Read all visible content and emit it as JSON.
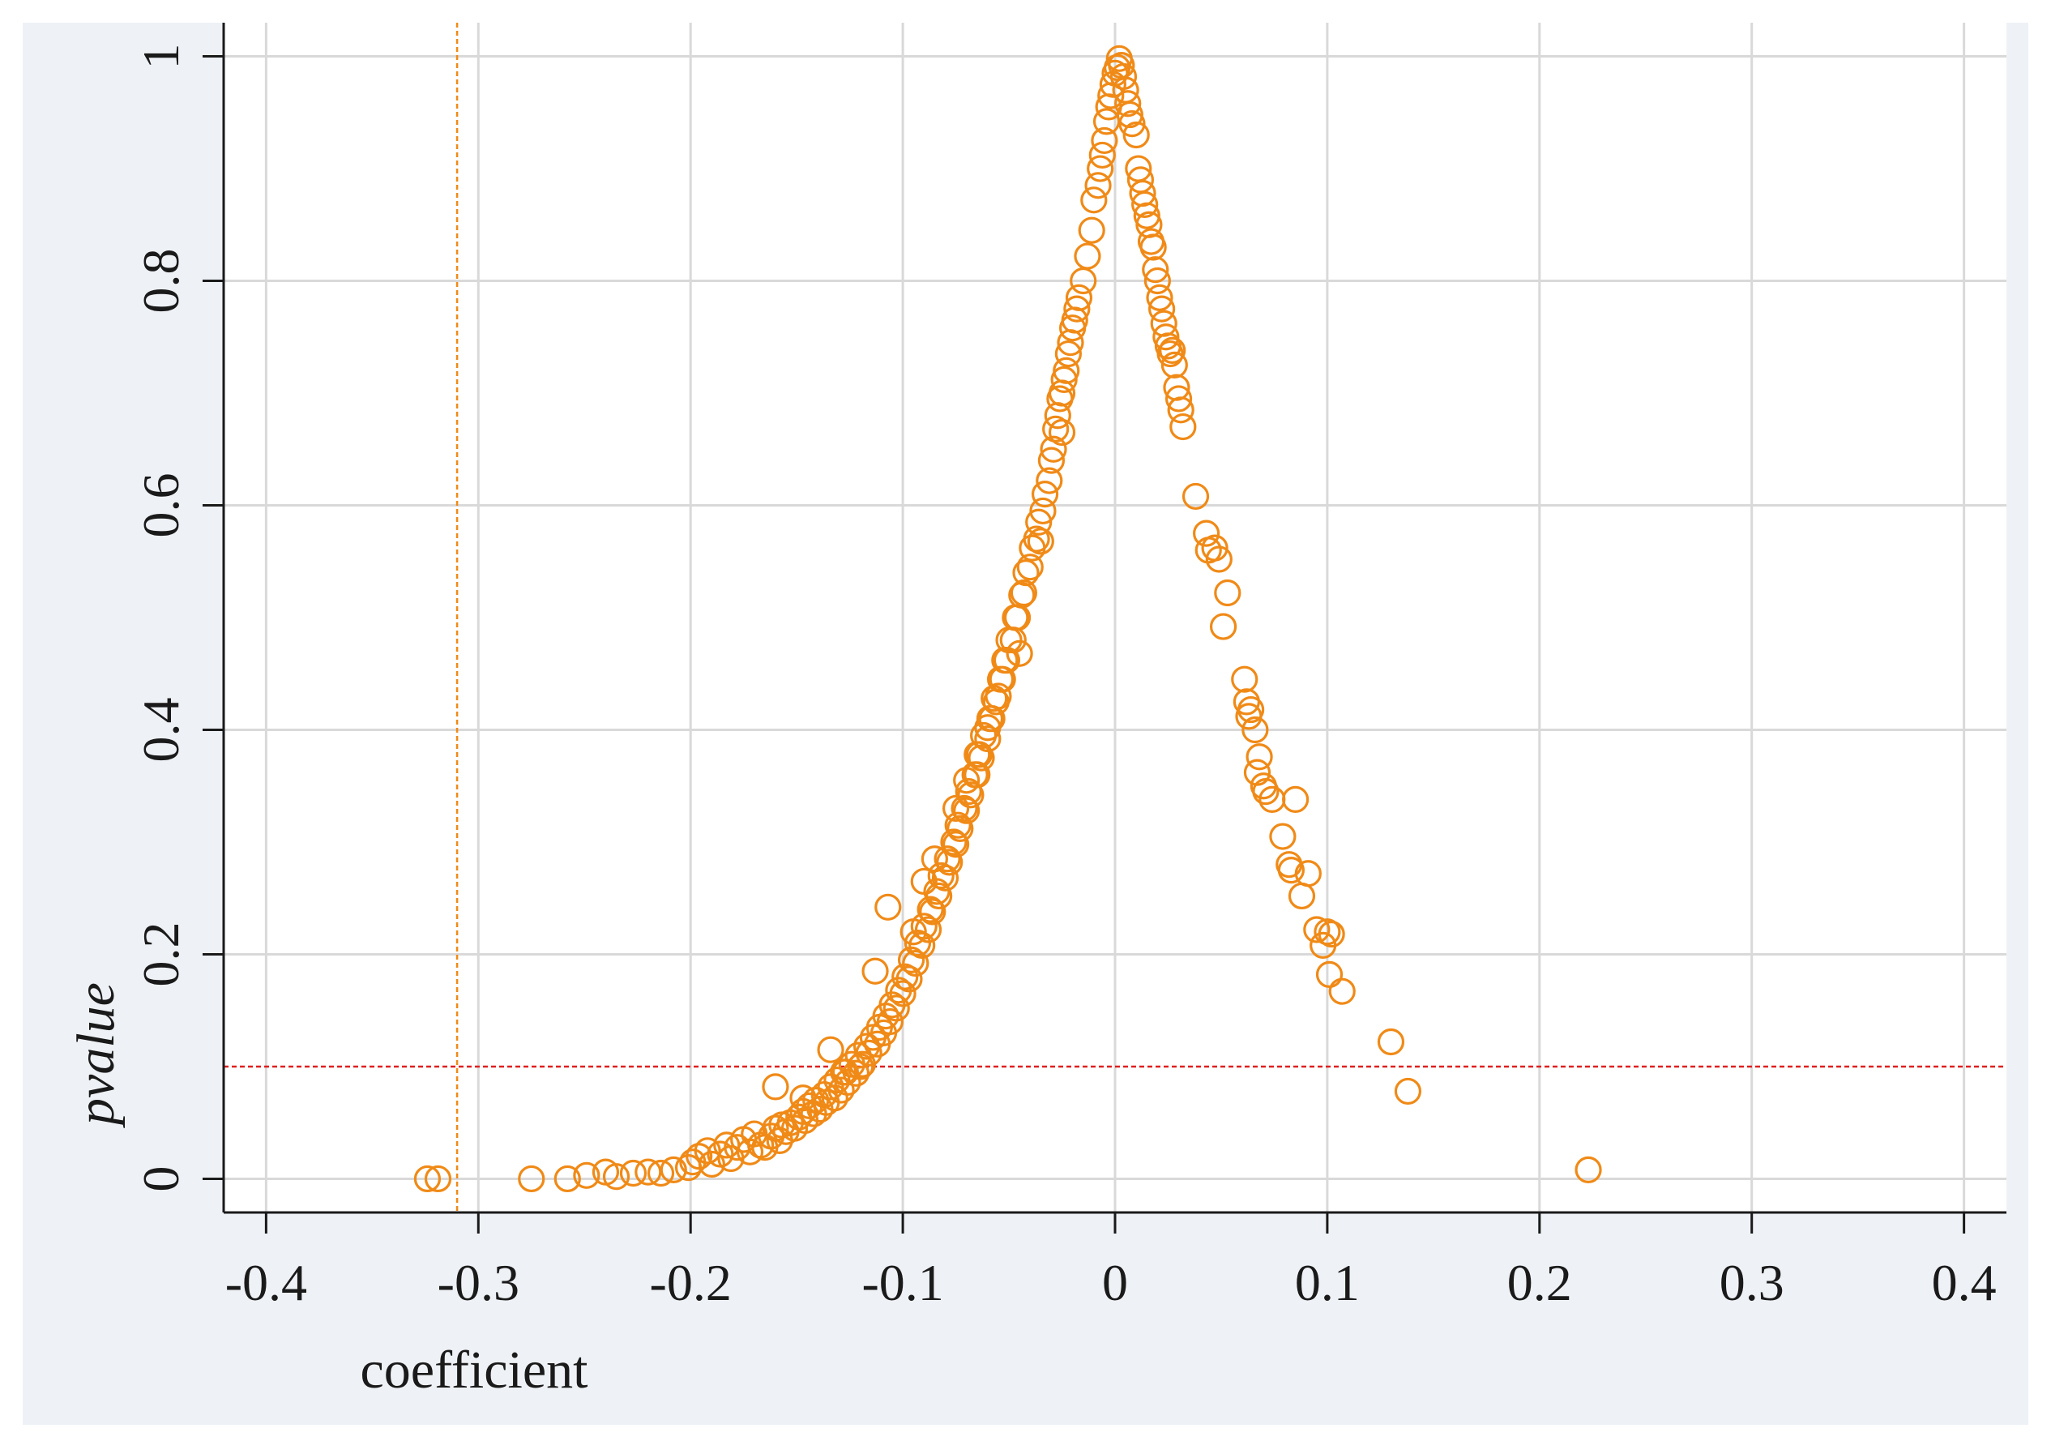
{
  "chart_data": {
    "type": "scatter",
    "title": "",
    "xlabel": "coefficient",
    "ylabel": "pvalue",
    "xlim": [
      -0.42,
      0.42
    ],
    "ylim": [
      -0.03,
      1.03
    ],
    "x_ticks": [
      -0.4,
      -0.3,
      -0.2,
      -0.1,
      0,
      0.1,
      0.2,
      0.3,
      0.4
    ],
    "x_tick_labels": [
      "-0.4",
      "-0.3",
      "-0.2",
      "-0.1",
      "0",
      "0.1",
      "0.2",
      "0.3",
      "0.4"
    ],
    "y_ticks": [
      0,
      0.2,
      0.4,
      0.6,
      0.8,
      1
    ],
    "y_tick_labels": [
      "0",
      "0.2",
      "0.4",
      "0.6",
      "0.8",
      "1"
    ],
    "grid": true,
    "reference_lines": [
      {
        "orientation": "vertical",
        "value": -0.31,
        "color": "#f08a17",
        "style": "dashed"
      },
      {
        "orientation": "horizontal",
        "value": 0.1,
        "color": "#e02020",
        "style": "dashed"
      }
    ],
    "series": [
      {
        "marker": "hollow-circle",
        "color": "#f08a17",
        "x": [
          -0.324,
          -0.319,
          -0.275,
          -0.258,
          -0.249,
          -0.24,
          -0.235,
          -0.227,
          -0.22,
          -0.214,
          -0.208,
          -0.201,
          -0.199,
          -0.196,
          -0.192,
          -0.19,
          -0.186,
          -0.183,
          -0.181,
          -0.178,
          -0.175,
          -0.172,
          -0.17,
          -0.167,
          -0.165,
          -0.162,
          -0.16,
          -0.158,
          -0.157,
          -0.155,
          -0.153,
          -0.151,
          -0.149,
          -0.147,
          -0.146,
          -0.144,
          -0.142,
          -0.141,
          -0.139,
          -0.137,
          -0.136,
          -0.134,
          -0.132,
          -0.131,
          -0.129,
          -0.127,
          -0.126,
          -0.124,
          -0.122,
          -0.121,
          -0.119,
          -0.117,
          -0.116,
          -0.114,
          -0.112,
          -0.111,
          -0.109,
          -0.108,
          -0.106,
          -0.105,
          -0.103,
          -0.102,
          -0.1,
          -0.099,
          -0.097,
          -0.096,
          -0.094,
          -0.093,
          -0.091,
          -0.09,
          -0.088,
          -0.087,
          -0.086,
          -0.084,
          -0.083,
          -0.082,
          -0.08,
          -0.079,
          -0.078,
          -0.076,
          -0.075,
          -0.074,
          -0.073,
          -0.071,
          -0.07,
          -0.069,
          -0.068,
          -0.066,
          -0.065,
          -0.064,
          -0.063,
          -0.062,
          -0.06,
          -0.059,
          -0.058,
          -0.057,
          -0.056,
          -0.054,
          -0.053,
          -0.052,
          -0.051,
          -0.05,
          -0.048,
          -0.047,
          -0.046,
          -0.044,
          -0.043,
          -0.042,
          -0.04,
          -0.039,
          -0.037,
          -0.036,
          -0.034,
          -0.033,
          -0.031,
          -0.03,
          -0.029,
          -0.028,
          -0.027,
          -0.026,
          -0.025,
          -0.024,
          -0.023,
          -0.022,
          -0.021,
          -0.02,
          -0.019,
          -0.018,
          -0.017,
          -0.015,
          -0.013,
          -0.011,
          -0.01,
          -0.008,
          -0.007,
          -0.006,
          -0.005,
          -0.004,
          -0.003,
          -0.002,
          -0.001,
          0.0,
          0.001,
          0.002,
          0.003,
          0.004,
          0.005,
          0.006,
          0.007,
          0.008,
          0.01,
          0.011,
          0.012,
          0.013,
          0.014,
          0.015,
          0.016,
          0.017,
          0.018,
          0.019,
          0.02,
          0.021,
          0.022,
          0.023,
          0.024,
          0.025,
          0.026,
          0.027,
          0.028,
          0.029,
          0.03,
          0.031,
          0.032,
          0.038,
          0.043,
          0.044,
          0.047,
          0.049,
          0.051,
          0.053,
          0.061,
          0.062,
          0.063,
          0.064,
          0.066,
          0.067,
          0.068,
          0.07,
          0.071,
          0.074,
          0.079,
          0.082,
          0.083,
          0.085,
          0.088,
          0.091,
          0.095,
          0.098,
          0.1,
          0.101,
          0.102,
          0.107,
          0.13,
          0.138,
          0.223,
          -0.107,
          -0.128,
          -0.134,
          -0.147,
          -0.16,
          -0.113,
          -0.12,
          -0.095,
          -0.09,
          -0.085,
          -0.075,
          -0.07,
          -0.065,
          -0.06,
          -0.055,
          -0.045,
          -0.035,
          -0.025
        ],
        "y": [
          0.0,
          0.0,
          0.0,
          0.0,
          0.003,
          0.006,
          0.002,
          0.005,
          0.006,
          0.005,
          0.008,
          0.01,
          0.015,
          0.02,
          0.025,
          0.013,
          0.022,
          0.03,
          0.018,
          0.028,
          0.035,
          0.024,
          0.04,
          0.03,
          0.028,
          0.038,
          0.045,
          0.034,
          0.048,
          0.042,
          0.05,
          0.045,
          0.055,
          0.06,
          0.052,
          0.065,
          0.058,
          0.07,
          0.062,
          0.075,
          0.068,
          0.082,
          0.072,
          0.088,
          0.079,
          0.095,
          0.086,
          0.102,
          0.094,
          0.11,
          0.102,
          0.118,
          0.112,
          0.126,
          0.12,
          0.135,
          0.13,
          0.145,
          0.14,
          0.155,
          0.152,
          0.168,
          0.165,
          0.18,
          0.178,
          0.195,
          0.192,
          0.21,
          0.208,
          0.225,
          0.222,
          0.24,
          0.238,
          0.256,
          0.252,
          0.27,
          0.268,
          0.285,
          0.282,
          0.3,
          0.298,
          0.315,
          0.312,
          0.33,
          0.328,
          0.345,
          0.342,
          0.36,
          0.36,
          0.378,
          0.375,
          0.395,
          0.392,
          0.41,
          0.41,
          0.428,
          0.425,
          0.445,
          0.445,
          0.462,
          0.462,
          0.48,
          0.48,
          0.5,
          0.5,
          0.52,
          0.522,
          0.54,
          0.545,
          0.562,
          0.57,
          0.585,
          0.595,
          0.61,
          0.622,
          0.64,
          0.65,
          0.668,
          0.68,
          0.695,
          0.7,
          0.712,
          0.72,
          0.735,
          0.745,
          0.758,
          0.765,
          0.775,
          0.785,
          0.8,
          0.822,
          0.845,
          0.872,
          0.885,
          0.9,
          0.912,
          0.925,
          0.942,
          0.955,
          0.965,
          0.975,
          0.985,
          0.99,
          0.998,
          0.992,
          0.982,
          0.97,
          0.958,
          0.948,
          0.94,
          0.93,
          0.9,
          0.89,
          0.878,
          0.868,
          0.858,
          0.85,
          0.835,
          0.83,
          0.81,
          0.8,
          0.785,
          0.775,
          0.762,
          0.75,
          0.742,
          0.735,
          0.738,
          0.725,
          0.705,
          0.695,
          0.685,
          0.67,
          0.608,
          0.575,
          0.56,
          0.562,
          0.552,
          0.492,
          0.522,
          0.445,
          0.425,
          0.412,
          0.418,
          0.4,
          0.362,
          0.376,
          0.35,
          0.345,
          0.338,
          0.305,
          0.28,
          0.275,
          0.338,
          0.252,
          0.272,
          0.222,
          0.208,
          0.22,
          0.182,
          0.218,
          0.167,
          0.122,
          0.078,
          0.008,
          0.242,
          0.095,
          0.115,
          0.072,
          0.082,
          0.185,
          0.1,
          0.22,
          0.265,
          0.285,
          0.33,
          0.355,
          0.378,
          0.402,
          0.43,
          0.468,
          0.568,
          0.665
        ]
      }
    ]
  }
}
